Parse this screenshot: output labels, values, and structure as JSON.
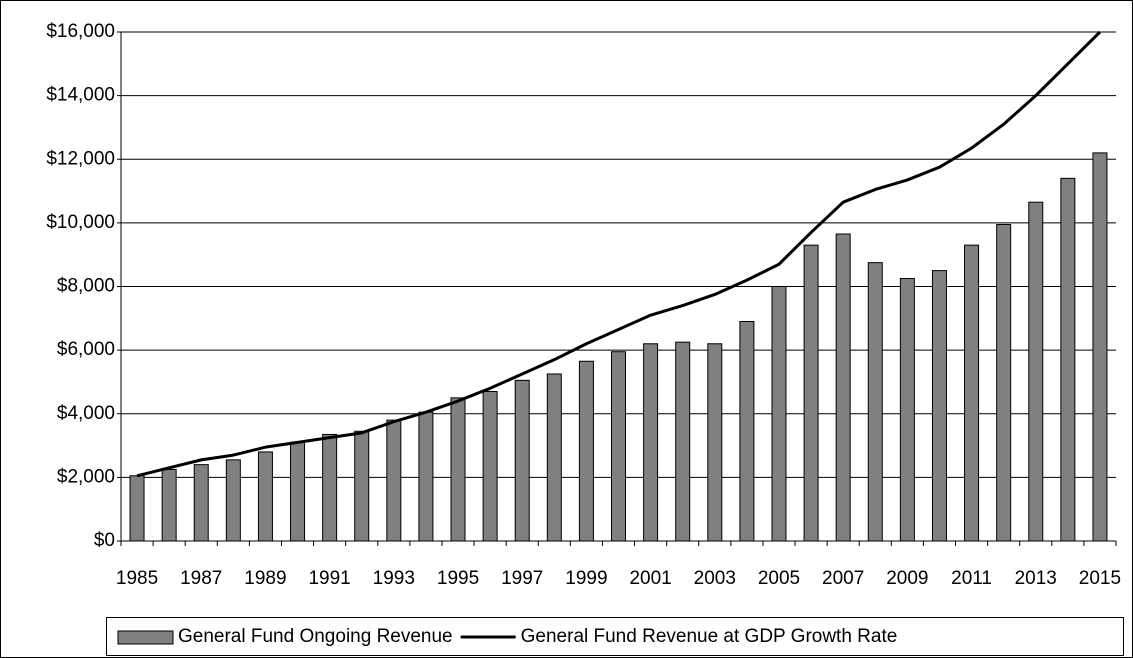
{
  "chart_data": {
    "type": "bar_line",
    "categories": [
      "1985",
      null,
      "1987",
      null,
      "1989",
      null,
      "1991",
      null,
      "1993",
      null,
      "1995",
      null,
      "1997",
      null,
      "1999",
      null,
      "2001",
      null,
      "2003",
      null,
      "2005",
      null,
      "2007",
      null,
      "2009",
      null,
      "2011",
      null,
      "2013",
      null,
      "2015"
    ],
    "series": [
      {
        "name": "General Fund Ongoing Revenue",
        "type": "bar",
        "color": "#808080",
        "values": [
          2050,
          2250,
          2400,
          2550,
          2800,
          3100,
          3350,
          3450,
          3800,
          4050,
          4500,
          4700,
          5050,
          5250,
          5650,
          5950,
          6200,
          6250,
          6200,
          6900,
          8000,
          9300,
          9650,
          8750,
          8250,
          8500,
          9300,
          9950,
          10650,
          11400,
          12200
        ]
      },
      {
        "name": "General Fund Revenue at GDP Growth Rate",
        "type": "line",
        "color": "#000000",
        "values": [
          2050,
          2300,
          2550,
          2700,
          2950,
          3100,
          3250,
          3400,
          3750,
          4050,
          4400,
          4800,
          5250,
          5700,
          6200,
          6650,
          7100,
          7400,
          7750,
          8200,
          8700,
          9700,
          10650,
          11050,
          11350,
          11750,
          12350,
          13100,
          14000,
          15000,
          16000
        ]
      }
    ],
    "ylim": [
      0,
      16000
    ],
    "yticks": [
      {
        "value": 0,
        "label": "$0"
      },
      {
        "value": 2000,
        "label": "$2,000"
      },
      {
        "value": 4000,
        "label": "$4,000"
      },
      {
        "value": 6000,
        "label": "$6,000"
      },
      {
        "value": 8000,
        "label": "$8,000"
      },
      {
        "value": 10000,
        "label": "$10,000"
      },
      {
        "value": 12000,
        "label": "$12,000"
      },
      {
        "value": 14000,
        "label": "$14,000"
      },
      {
        "value": 16000,
        "label": "$16,000"
      }
    ],
    "grid": true,
    "legend": "bottom"
  }
}
